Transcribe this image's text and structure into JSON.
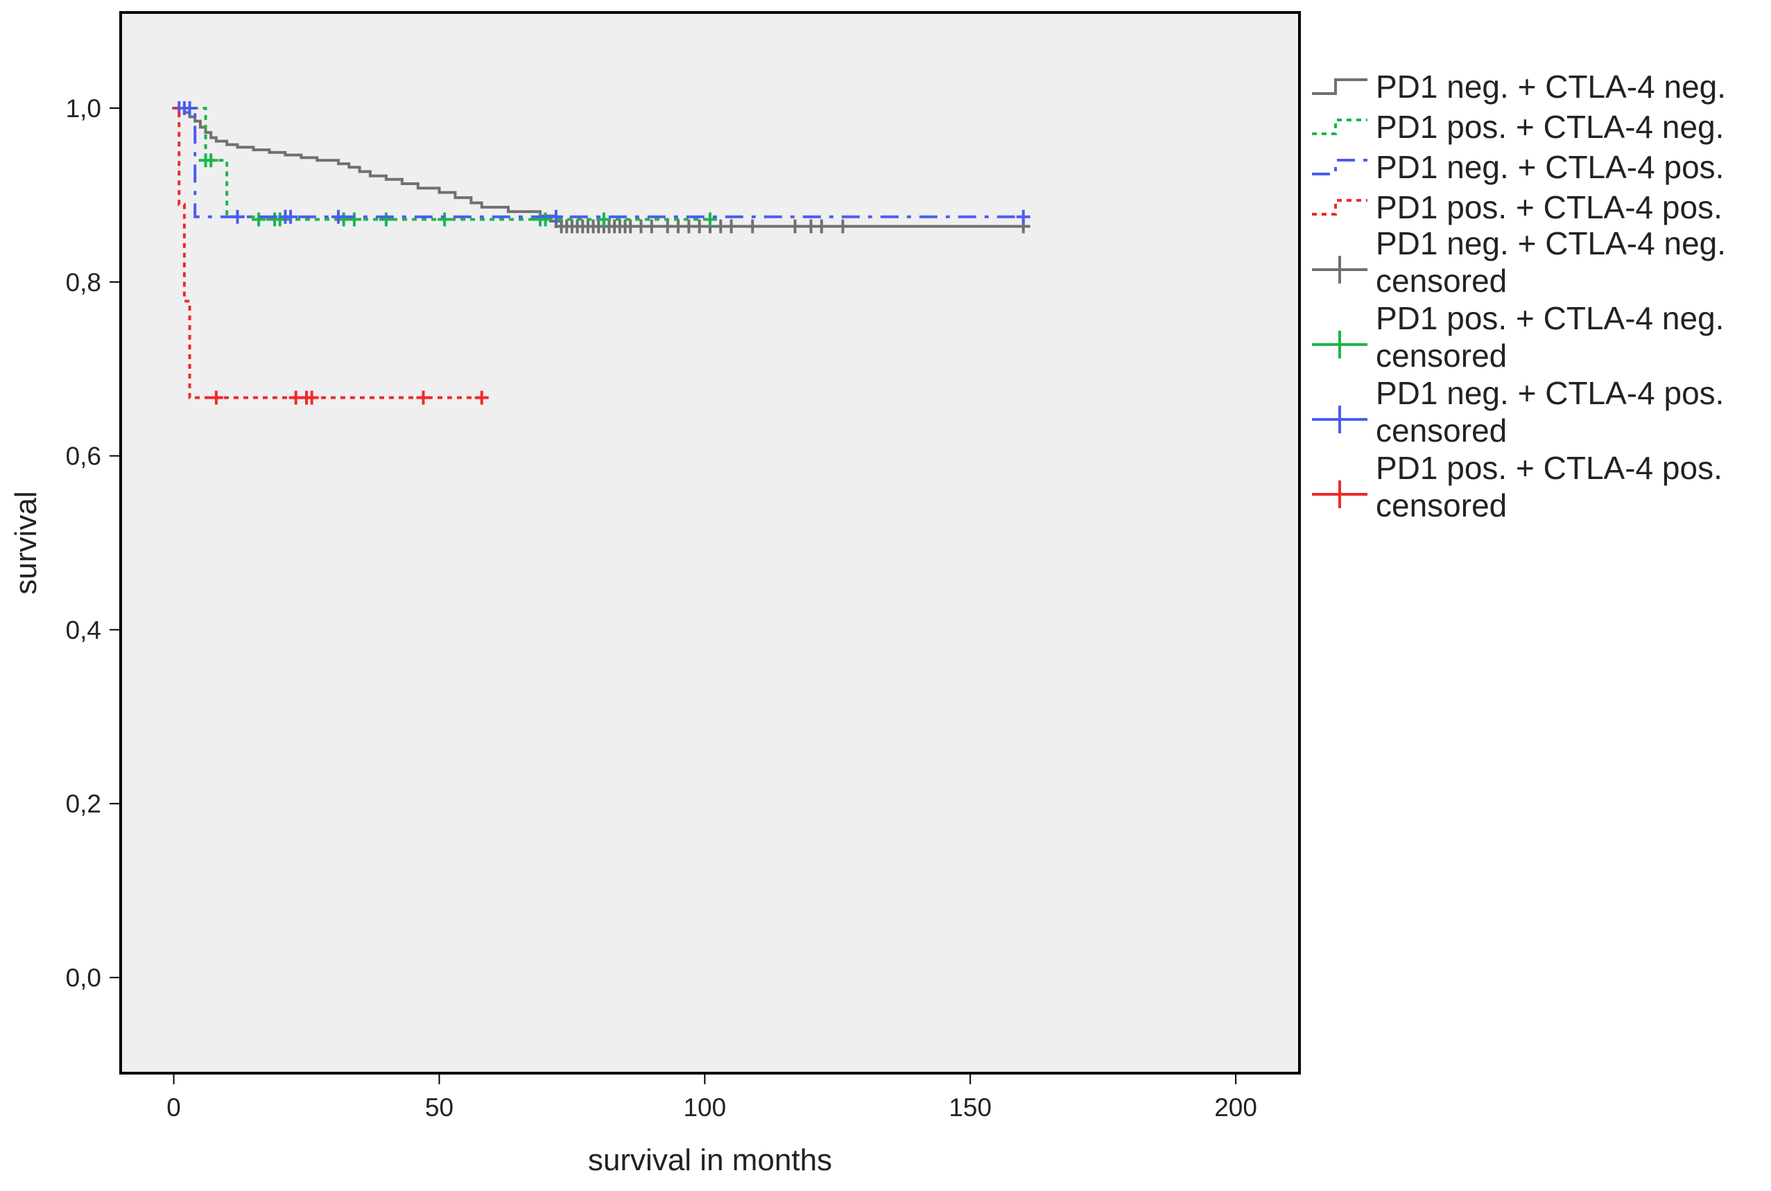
{
  "chart_data": {
    "type": "line",
    "subtype": "kaplan-meier",
    "title": "",
    "xlabel": "survival in months",
    "ylabel": "survival",
    "xlim": [
      -10,
      212
    ],
    "ylim": [
      -0.11,
      1.11
    ],
    "x_ticks": [
      0,
      50,
      100,
      150,
      200
    ],
    "x_tick_labels": [
      "0",
      "50",
      "100",
      "150",
      "200"
    ],
    "y_ticks": [
      0.0,
      0.2,
      0.4,
      0.6,
      0.8,
      1.0
    ],
    "y_tick_labels": [
      "0,0",
      "0,2",
      "0,4",
      "0,6",
      "0,8",
      "1,0"
    ],
    "grid": false,
    "plot_background": "#efefef",
    "legend_position": "right",
    "series": [
      {
        "name": "PD1 neg. + CTLA-4 neg.",
        "color": "#707070",
        "dash": "solid",
        "steps": [
          [
            0,
            1.0
          ],
          [
            2,
            0.995
          ],
          [
            3,
            0.99
          ],
          [
            4,
            0.985
          ],
          [
            5,
            0.978
          ],
          [
            6,
            0.972
          ],
          [
            7,
            0.966
          ],
          [
            8,
            0.962
          ],
          [
            10,
            0.958
          ],
          [
            12,
            0.955
          ],
          [
            15,
            0.952
          ],
          [
            18,
            0.949
          ],
          [
            21,
            0.946
          ],
          [
            24,
            0.943
          ],
          [
            27,
            0.94
          ],
          [
            31,
            0.936
          ],
          [
            33,
            0.932
          ],
          [
            35,
            0.927
          ],
          [
            37,
            0.922
          ],
          [
            40,
            0.918
          ],
          [
            43,
            0.913
          ],
          [
            46,
            0.908
          ],
          [
            50,
            0.903
          ],
          [
            53,
            0.897
          ],
          [
            56,
            0.891
          ],
          [
            58,
            0.886
          ],
          [
            63,
            0.881
          ],
          [
            69,
            0.876
          ],
          [
            72,
            0.87
          ],
          [
            73,
            0.864
          ],
          [
            160,
            0.864
          ]
        ],
        "censored": [
          72,
          73,
          74,
          75,
          76,
          77,
          78,
          79,
          80,
          81,
          82,
          83,
          84,
          85,
          86,
          88,
          90,
          93,
          95,
          97,
          99,
          101,
          103,
          105,
          109,
          117,
          120,
          122,
          126,
          160
        ]
      },
      {
        "name": "PD1 pos. + CTLA-4 neg.",
        "color": "#1db54a",
        "dash": "dotted",
        "steps": [
          [
            0,
            1.0
          ],
          [
            6,
            0.94
          ],
          [
            10,
            0.875
          ],
          [
            15,
            0.872
          ],
          [
            70,
            0.872
          ],
          [
            101,
            0.872
          ]
        ],
        "censored": [
          6,
          7,
          16,
          19,
          20,
          32,
          34,
          40,
          51,
          69,
          70,
          81,
          101
        ]
      },
      {
        "name": "PD1 neg. + CTLA-4 pos.",
        "color": "#4c5cf0",
        "dash": "dashdot",
        "steps": [
          [
            0,
            1.0
          ],
          [
            4,
            0.875
          ],
          [
            160,
            0.875
          ]
        ],
        "censored": [
          1,
          2,
          3,
          12,
          21,
          22,
          31,
          72,
          160
        ]
      },
      {
        "name": "PD1 pos. + CTLA-4 pos.",
        "color": "#ee2a2a",
        "dash": "dotted",
        "steps": [
          [
            0,
            1.0
          ],
          [
            1,
            0.889
          ],
          [
            2,
            0.778
          ],
          [
            3,
            0.667
          ],
          [
            58,
            0.667
          ]
        ],
        "censored": [
          8,
          23,
          25,
          26,
          47,
          58
        ]
      }
    ],
    "legend": [
      {
        "label": "PD1 neg. + CTLA-4 neg.",
        "kind": "line",
        "color": "#707070",
        "dash": "solid"
      },
      {
        "label": "PD1 pos. + CTLA-4 neg.",
        "kind": "line",
        "color": "#1db54a",
        "dash": "dotted"
      },
      {
        "label": "PD1 neg. + CTLA-4 pos.",
        "kind": "line",
        "color": "#4c5cf0",
        "dash": "dashdot"
      },
      {
        "label": "PD1 pos. + CTLA-4 pos.",
        "kind": "line",
        "color": "#ee2a2a",
        "dash": "dotted"
      },
      {
        "label": "PD1 neg. + CTLA-4 neg.",
        "label2": "censored",
        "kind": "cross",
        "color": "#707070"
      },
      {
        "label": "PD1 pos. + CTLA-4 neg.",
        "label2": "censored",
        "kind": "cross",
        "color": "#1db54a"
      },
      {
        "label": "PD1 neg. + CTLA-4 pos.",
        "label2": "censored",
        "kind": "cross",
        "color": "#4c5cf0"
      },
      {
        "label": "PD1 pos. + CTLA-4 pos.",
        "label2": "censored",
        "kind": "cross",
        "color": "#ee2a2a"
      }
    ]
  }
}
